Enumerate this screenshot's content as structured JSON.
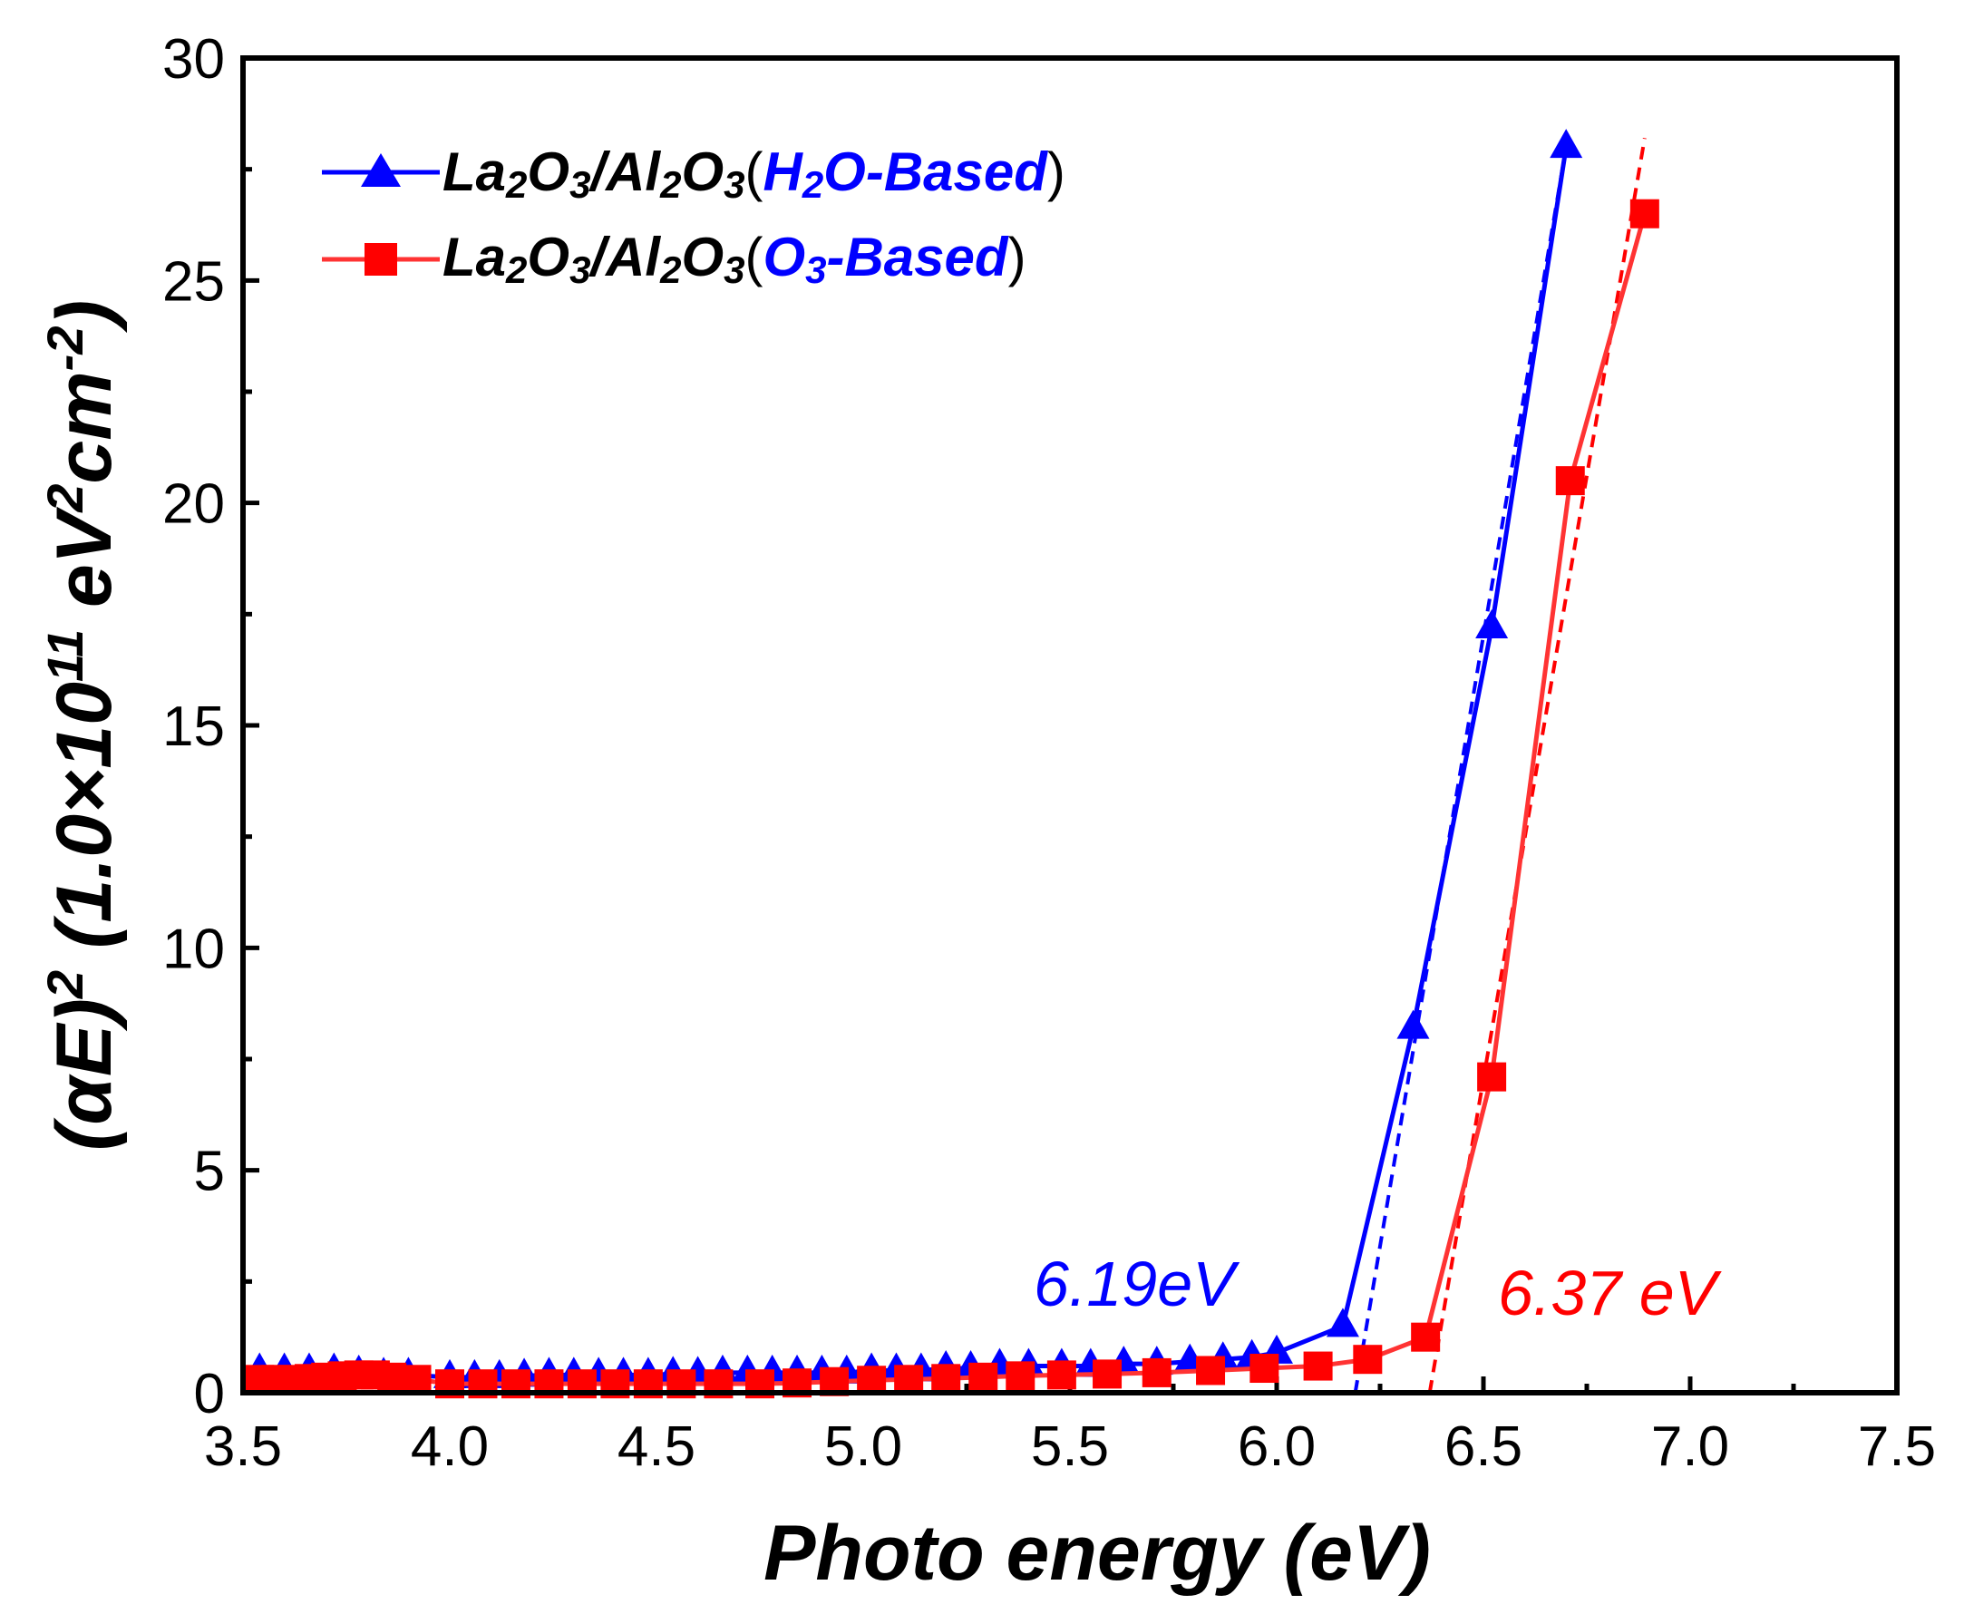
{
  "chart_data": {
    "type": "line",
    "xlabel": "Photo energy (eV)",
    "ylabel_parts": {
      "a": "(αE)",
      "a_sup": "2",
      "b": " (1.0×10",
      "b_sup": "11",
      "c": " eV",
      "c_sup": "2",
      "d": "cm",
      "d_sup": "-2",
      "e": ")"
    },
    "xlim": [
      3.5,
      7.5
    ],
    "ylim": [
      0,
      30
    ],
    "x_ticks": [
      3.5,
      4.0,
      4.5,
      5.0,
      5.5,
      6.0,
      6.5,
      7.0,
      7.5
    ],
    "x_tick_labels": [
      "3.5",
      "4.0",
      "4.5",
      "5.0",
      "5.5",
      "6.0",
      "6.5",
      "7.0",
      "7.5"
    ],
    "y_ticks": [
      0,
      5,
      10,
      15,
      20,
      25,
      30
    ],
    "y_tick_labels": [
      "0",
      "5",
      "10",
      "15",
      "20",
      "25",
      "30"
    ],
    "series": [
      {
        "name": "La2O3/Al2O3(H2O-Based)",
        "color": "#0000ff",
        "marker": "triangle",
        "x": [
          3.54,
          3.6,
          3.66,
          3.72,
          3.78,
          3.84,
          3.9,
          4.0,
          4.06,
          4.12,
          4.18,
          4.24,
          4.3,
          4.36,
          4.42,
          4.48,
          4.54,
          4.6,
          4.66,
          4.72,
          4.78,
          4.84,
          4.9,
          4.96,
          5.02,
          5.08,
          5.14,
          5.2,
          5.26,
          5.33,
          5.4,
          5.48,
          5.55,
          5.63,
          5.71,
          5.79,
          5.87,
          5.94,
          6.0,
          6.16,
          6.33,
          6.52,
          6.7
        ],
        "y": [
          0.5,
          0.5,
          0.5,
          0.5,
          0.45,
          0.4,
          0.4,
          0.35,
          0.35,
          0.35,
          0.38,
          0.4,
          0.4,
          0.4,
          0.4,
          0.4,
          0.42,
          0.42,
          0.45,
          0.45,
          0.45,
          0.45,
          0.45,
          0.45,
          0.5,
          0.5,
          0.5,
          0.55,
          0.55,
          0.6,
          0.6,
          0.6,
          0.6,
          0.65,
          0.65,
          0.7,
          0.75,
          0.8,
          0.9,
          1.5,
          8.2,
          17.2,
          28.0
        ]
      },
      {
        "name": "La2O3/Al2O3(O3-Based)",
        "color": "#ff0000",
        "marker": "square",
        "x": [
          3.54,
          3.58,
          3.62,
          3.66,
          3.7,
          3.74,
          3.78,
          3.82,
          3.86,
          3.92,
          4.0,
          4.08,
          4.16,
          4.24,
          4.32,
          4.4,
          4.48,
          4.56,
          4.65,
          4.75,
          4.84,
          4.93,
          5.02,
          5.11,
          5.2,
          5.29,
          5.38,
          5.48,
          5.59,
          5.71,
          5.84,
          5.97,
          6.1,
          6.22,
          6.36,
          6.52,
          6.71,
          6.89
        ],
        "y": [
          0.3,
          0.3,
          0.3,
          0.32,
          0.35,
          0.38,
          0.4,
          0.4,
          0.35,
          0.3,
          0.2,
          0.2,
          0.2,
          0.2,
          0.2,
          0.2,
          0.2,
          0.2,
          0.2,
          0.2,
          0.22,
          0.25,
          0.28,
          0.3,
          0.32,
          0.35,
          0.38,
          0.4,
          0.42,
          0.45,
          0.5,
          0.55,
          0.6,
          0.75,
          1.25,
          7.1,
          20.5,
          26.5
        ]
      }
    ],
    "fit_lines": [
      {
        "series": "H2O-Based",
        "color": "#0000ff",
        "x": [
          6.19,
          6.7
        ],
        "y": [
          0,
          28.0
        ]
      },
      {
        "series": "O3-Based",
        "color": "#ff0000",
        "x": [
          6.37,
          6.89
        ],
        "y": [
          0,
          28.2
        ]
      }
    ],
    "legend": {
      "position": "top-left",
      "entries": [
        {
          "color": "#0000ff",
          "marker": "triangle",
          "t1": "La",
          "s1": "2",
          "t2": "O",
          "s2": "3",
          "t3": "/Al",
          "s3": "2",
          "t4": "O",
          "s4": "3",
          "paren_open": "(",
          "c1": "H",
          "cs1": "2",
          "c2": "O-Based",
          "paren_close": ")"
        },
        {
          "color": "#ff0000",
          "marker": "square",
          "t1": "La",
          "s1": "2",
          "t2": "O",
          "s2": "3",
          "t3": "/Al",
          "s3": "2",
          "t4": "O",
          "s4": "3",
          "paren_open": "(",
          "c1": "O",
          "cs1": "3",
          "c2": "-Based",
          "paren_close": ")"
        }
      ]
    },
    "annotations": [
      {
        "text": "6.19eV",
        "color": "#0000ff"
      },
      {
        "text": "6.37 eV",
        "color": "#ff0000"
      }
    ]
  }
}
